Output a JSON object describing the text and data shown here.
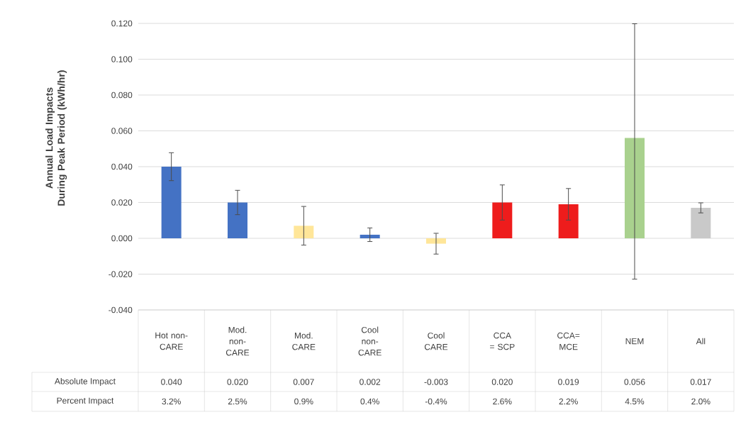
{
  "chart_data": {
    "type": "bar",
    "ylabel": "Annual Load Impacts During Peak Period (kWh/hr)",
    "categories": [
      "Hot non-CARE",
      "Mod. non-CARE",
      "Mod. CARE",
      "Cool non-CARE",
      "Cool CARE",
      "CCA = SCP",
      "CCA= MCE",
      "NEM",
      "All"
    ],
    "series": [
      {
        "name": "Absolute Impact",
        "values": [
          0.04,
          0.02,
          0.007,
          0.002,
          -0.003,
          0.02,
          0.019,
          0.056,
          0.017
        ],
        "colors": [
          "#4472c4",
          "#4472c4",
          "#ffe699",
          "#4472c4",
          "#ffe699",
          "#ee1c1c",
          "#ee1c1c",
          "#a9d18e",
          "#c9c9c9"
        ],
        "value_labels": [
          "0.040",
          "0.020",
          "0.007",
          "0.002",
          "-0.003",
          "0.020",
          "0.019",
          "0.056",
          "0.017"
        ],
        "errors": [
          [
            0.032,
            0.048
          ],
          [
            0.013,
            0.027
          ],
          [
            -0.004,
            0.018
          ],
          [
            -0.002,
            0.006
          ],
          [
            -0.009,
            0.003
          ],
          [
            0.01,
            0.03
          ],
          [
            0.01,
            0.028
          ],
          [
            -0.023,
            0.12
          ],
          [
            0.014,
            0.02
          ]
        ]
      }
    ],
    "annotations": [
      "Percent Impact",
      "3.2%",
      "2.5%",
      "0.9%",
      "0.4%",
      "-0.4%",
      "2.6%",
      "2.2%",
      "4.5%",
      "2.0%"
    ],
    "ylim": [
      -0.04,
      0.12
    ],
    "yticks": [
      {
        "value": -0.04,
        "label": "-0.040"
      },
      {
        "value": -0.02,
        "label": "-0.020"
      },
      {
        "value": 0,
        "label": "0.000"
      },
      {
        "value": 0.02,
        "label": "0.020"
      },
      {
        "value": 0.04,
        "label": "0.040"
      },
      {
        "value": 0.06,
        "label": "0.060"
      },
      {
        "value": 0.08,
        "label": "0.080"
      },
      {
        "value": 0.1,
        "label": "0.100"
      },
      {
        "value": 0.12,
        "label": "0.120"
      }
    ],
    "grid": "y"
  }
}
